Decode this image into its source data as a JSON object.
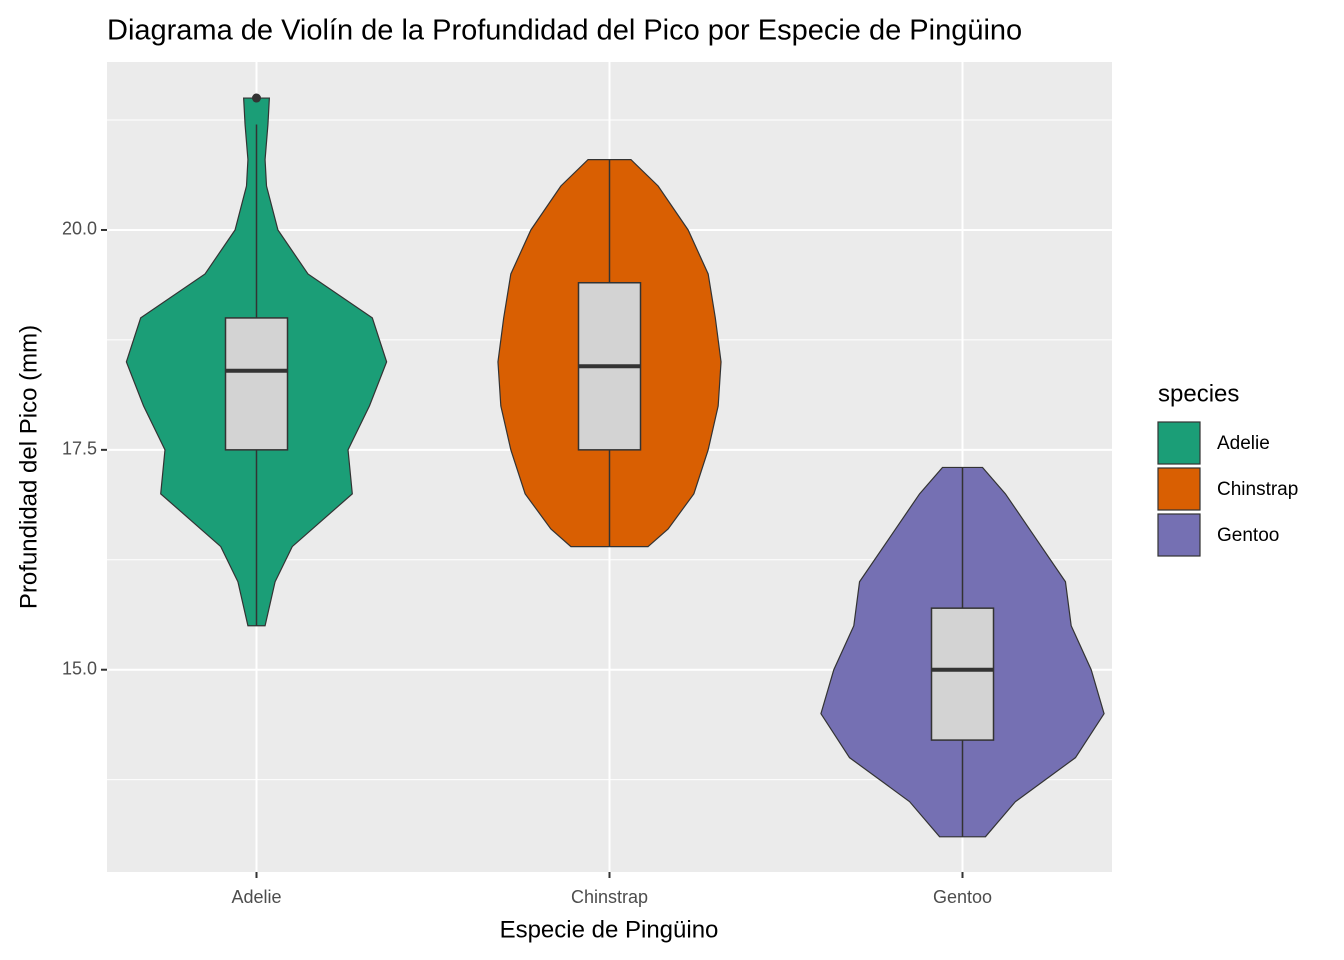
{
  "chart_data": {
    "type": "violin",
    "title": "Diagrama de Violín de la Profundidad del Pico por Especie de Pingüino",
    "x_label": "Especie de Pingüino",
    "y_label": "Profundidad del Pico (mm)",
    "categories": [
      "Adelie",
      "Chinstrap",
      "Gentoo"
    ],
    "legend_title": "species",
    "box_color": "#d3d3d3",
    "ylim": [
      12.7,
      21.91
    ],
    "yticks": [
      {
        "value": 15,
        "label": "15.0"
      },
      17.5,
      {
        "value": 20,
        "label": "20.0"
      }
    ],
    "minor_yticks": [
      13.75,
      16.25,
      18.75,
      21.25
    ],
    "grid": true,
    "series": [
      {
        "name": "Adelie",
        "color": "#1b9e77",
        "min": 15.5,
        "q1": 17.5,
        "median": 18.4,
        "q3": 19.0,
        "max": 21.2,
        "outliers": [
          21.5
        ],
        "density_y": [
          15.5,
          16.0,
          16.4,
          17.0,
          17.5,
          18.0,
          18.5,
          19.0,
          19.5,
          20.0,
          20.5,
          20.8,
          21.2,
          21.5
        ],
        "density": [
          0.06,
          0.13,
          0.25,
          0.67,
          0.64,
          0.79,
          0.91,
          0.81,
          0.36,
          0.15,
          0.07,
          0.06,
          0.08,
          0.09
        ]
      },
      {
        "name": "Chinstrap",
        "color": "#d95f02",
        "min": 16.4,
        "q1": 17.5,
        "median": 18.45,
        "q3": 19.4,
        "max": 20.8,
        "outliers": [],
        "density_y": [
          16.4,
          16.6,
          17.0,
          17.5,
          18.0,
          18.5,
          19.0,
          19.5,
          20.0,
          20.5,
          20.8
        ],
        "density": [
          0.27,
          0.41,
          0.59,
          0.69,
          0.76,
          0.78,
          0.74,
          0.69,
          0.55,
          0.34,
          0.15
        ]
      },
      {
        "name": "Gentoo",
        "color": "#7570b3",
        "min": 13.1,
        "q1": 14.2,
        "median": 15.0,
        "q3": 15.7,
        "max": 17.3,
        "outliers": [],
        "density_y": [
          13.1,
          13.5,
          14.0,
          14.5,
          15.0,
          15.5,
          16.0,
          16.5,
          17.0,
          17.3
        ],
        "density": [
          0.16,
          0.37,
          0.79,
          0.99,
          0.9,
          0.76,
          0.72,
          0.51,
          0.3,
          0.14
        ]
      }
    ]
  }
}
